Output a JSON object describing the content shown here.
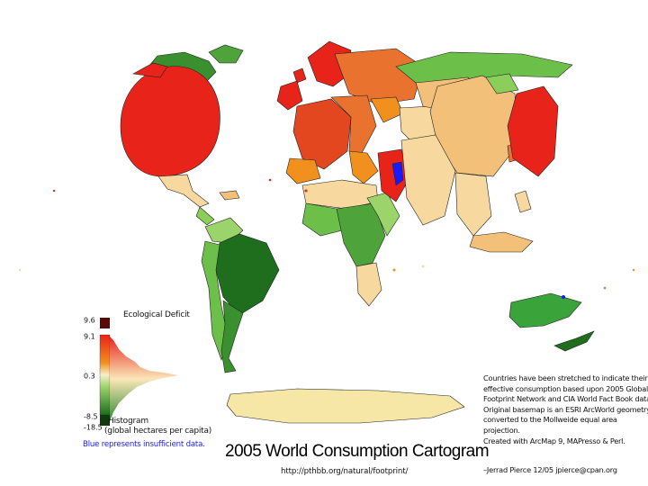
{
  "title": "2005 World Consumption Cartogram",
  "url": "http://pthbb.org/natural/footprint/",
  "legend": {
    "title": "Ecological Deficit",
    "ticks": [
      "9.6",
      "9.1",
      "0.3",
      "-8.5",
      "-18.5"
    ],
    "histogram_label": "Histogram",
    "histogram_units": "(global hectares per capita)"
  },
  "note_blue": "Blue represents insufficient data.",
  "description": {
    "lines": [
      "Countries have been stretched to indicate their",
      "effective consumption based upon 2005 Global",
      "Footprint Network and CIA World Fact Book data.",
      "Original basemap is an ESRI ArcWorld geometry",
      "converted to the Mollweide equal area projection.",
      "Created with ArcMap 9, MAPresso & Perl."
    ]
  },
  "credit": "–Jerrad Pierce 12/05 jpierce@cpan.org",
  "colors": {
    "deficit_high": "#e8231a",
    "deficit_mid": "#f2901e",
    "neutral": "#f7d9a0",
    "surplus": "#6cc04a",
    "surplus_high": "#1e6e1e",
    "insufficient": "#1a1aff",
    "antarctica": "#f7e7a6"
  }
}
